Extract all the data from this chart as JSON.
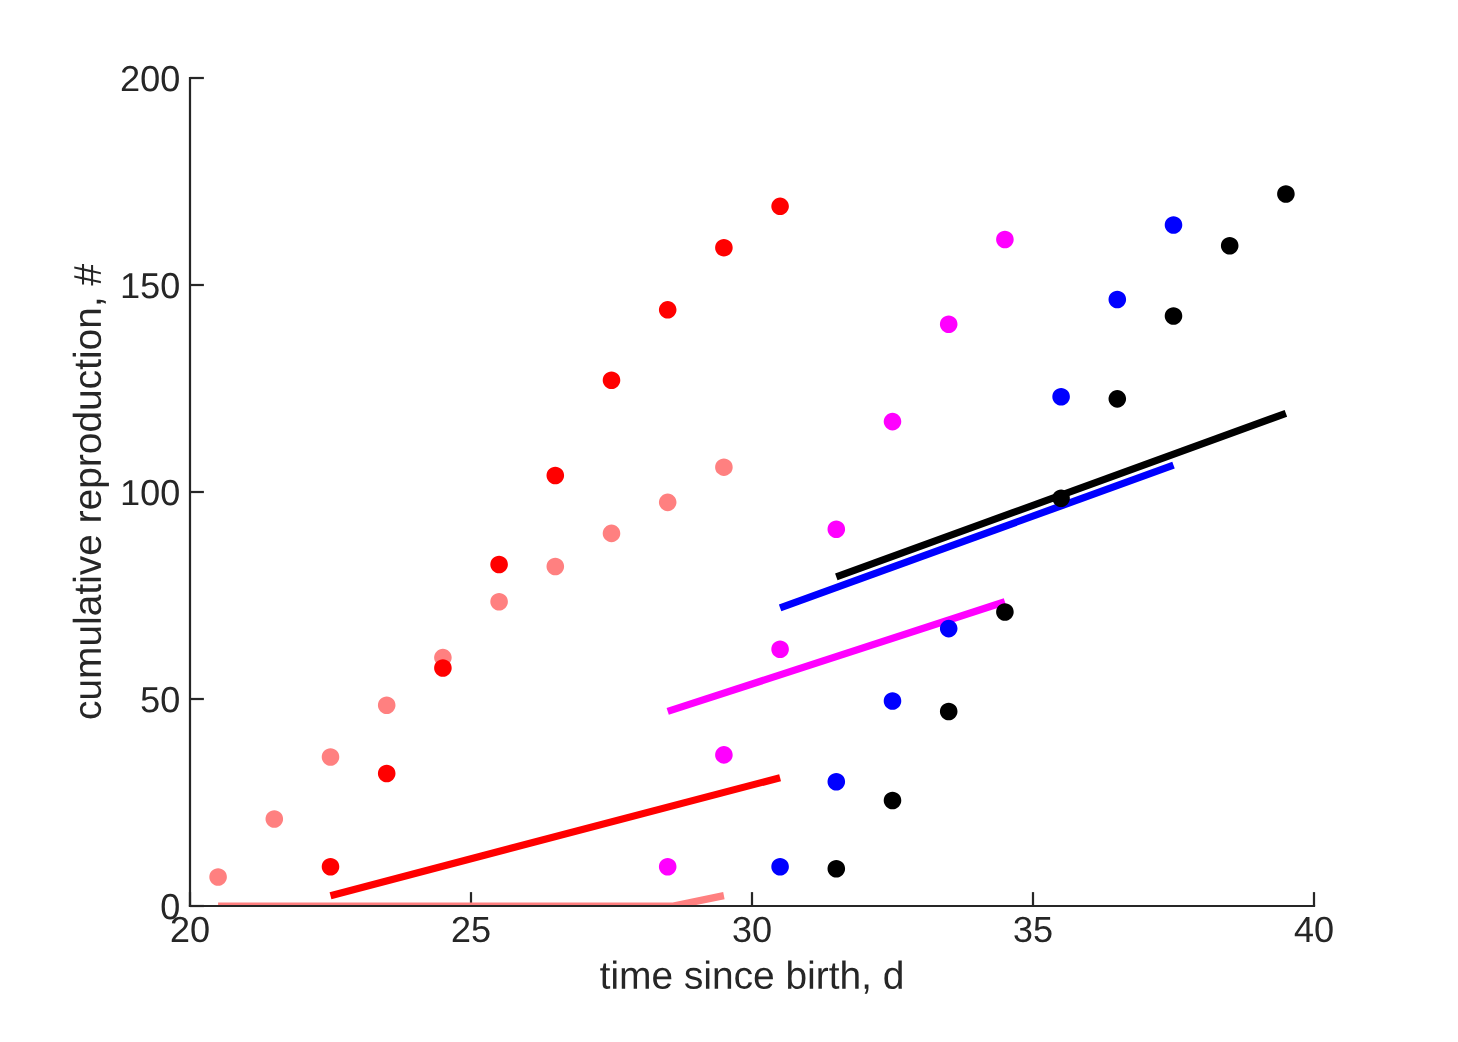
{
  "chart_data": {
    "type": "scatter",
    "xlabel": "time since birth, d",
    "ylabel": "cumulative reproduction, #",
    "xlim": [
      20,
      40
    ],
    "xticks": [
      20,
      25,
      30,
      35,
      40
    ],
    "ylim": [
      0,
      200
    ],
    "yticks": [
      0,
      50,
      100,
      150,
      200
    ],
    "grid": false,
    "series": [
      {
        "marker": "circle",
        "color": "#ff8080",
        "x": [
          20.5,
          21.5,
          22.5,
          23.5,
          24.5,
          25.5,
          26.5,
          27.5,
          28.5,
          29.5
        ],
        "values": [
          7,
          21,
          36,
          48.5,
          60,
          73.5,
          82,
          90,
          97.5,
          106
        ]
      },
      {
        "marker": "circle",
        "color": "#ff0000",
        "x": [
          22.5,
          23.5,
          24.5,
          25.5,
          26.5,
          27.5,
          28.5,
          29.5,
          30.5
        ],
        "values": [
          9.5,
          32,
          57.5,
          82.5,
          104,
          127,
          144,
          159,
          169
        ]
      },
      {
        "marker": "circle",
        "color": "#ff00ff",
        "x": [
          28.5,
          29.5,
          30.5,
          31.5,
          32.5,
          33.5,
          34.5
        ],
        "values": [
          9.5,
          36.5,
          62,
          91,
          117,
          140.5,
          161
        ]
      },
      {
        "marker": "circle",
        "color": "#0000ff",
        "x": [
          30.5,
          31.5,
          32.5,
          33.5,
          35.5,
          36.5,
          37.5
        ],
        "values": [
          9.5,
          30,
          49.5,
          67,
          123,
          146.5,
          164.5
        ]
      },
      {
        "marker": "circle",
        "color": "#000000",
        "x": [
          31.5,
          32.5,
          33.5,
          34.5,
          35.5,
          36.5,
          37.5,
          38.5,
          39.5
        ],
        "values": [
          9,
          25.5,
          47,
          71,
          98.5,
          122.5,
          142.5,
          159.5,
          172
        ]
      },
      {
        "type": "line",
        "marker": "none",
        "color": "#ff8080",
        "x": [
          20.5,
          28.6,
          29.5
        ],
        "values": [
          0,
          0,
          2.5
        ]
      },
      {
        "type": "line",
        "marker": "none",
        "color": "#ff0000",
        "x": [
          22.5,
          30.5
        ],
        "values": [
          2.5,
          31
        ]
      },
      {
        "type": "line",
        "marker": "none",
        "color": "#ff00ff",
        "x": [
          28.5,
          34.5
        ],
        "values": [
          47,
          73.5
        ]
      },
      {
        "type": "line",
        "marker": "none",
        "color": "#0000ff",
        "x": [
          30.5,
          37.5
        ],
        "values": [
          72,
          106.5
        ]
      },
      {
        "type": "line",
        "marker": "none",
        "color": "#000000",
        "x": [
          31.5,
          39.5
        ],
        "values": [
          79.5,
          119
        ]
      }
    ]
  }
}
